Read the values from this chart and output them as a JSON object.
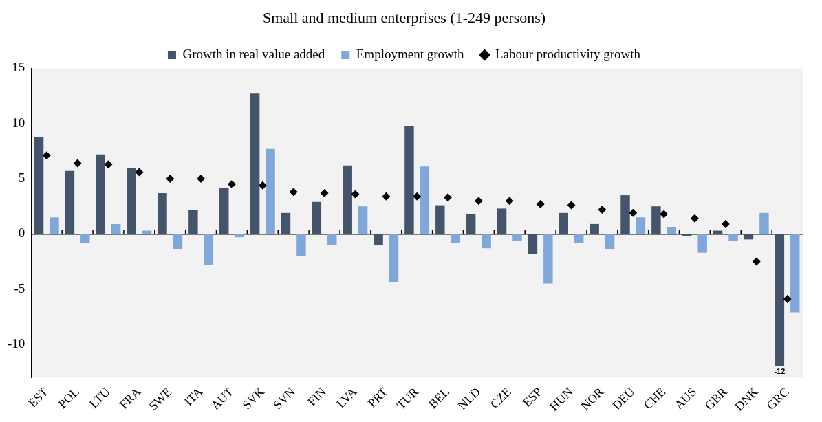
{
  "chart_data": {
    "type": "bar",
    "title": "Small and medium enterprises (1-249 persons)",
    "categories": [
      "EST",
      "POL",
      "LTU",
      "FRA",
      "SWE",
      "ITA",
      "AUT",
      "SVK",
      "SVN",
      "FIN",
      "LVA",
      "PRT",
      "TUR",
      "BEL",
      "NLD",
      "CZE",
      "ESP",
      "HUN",
      "NOR",
      "DEU",
      "CHE",
      "AUS",
      "GBR",
      "DNK",
      "GRC"
    ],
    "series": [
      {
        "name": "Growth in real value added",
        "type": "bar",
        "color": "#44546a",
        "values": [
          8.8,
          5.7,
          7.2,
          6.0,
          3.7,
          2.2,
          4.2,
          12.7,
          1.9,
          2.9,
          6.2,
          -1.0,
          9.8,
          2.6,
          1.8,
          2.3,
          -1.8,
          1.9,
          0.9,
          3.5,
          2.5,
          -0.2,
          0.3,
          -0.5,
          -12
        ],
        "value_labels": [
          null,
          null,
          null,
          null,
          null,
          null,
          null,
          null,
          null,
          null,
          null,
          null,
          null,
          null,
          null,
          null,
          null,
          null,
          null,
          null,
          null,
          null,
          null,
          null,
          "-12"
        ]
      },
      {
        "name": "Employment growth",
        "type": "bar",
        "color": "#7fa7d9",
        "values": [
          1.5,
          -0.8,
          0.9,
          0.3,
          -1.4,
          -2.8,
          -0.3,
          7.7,
          -2.0,
          -1.0,
          2.5,
          -4.4,
          6.1,
          -0.8,
          -1.3,
          -0.6,
          -4.5,
          -0.8,
          -1.4,
          1.5,
          0.6,
          -1.7,
          -0.6,
          1.9,
          -7.1
        ]
      },
      {
        "name": "Labour productivity growth",
        "type": "scatter",
        "color": "#000000",
        "values": [
          7.1,
          6.4,
          6.3,
          5.6,
          5.0,
          5.0,
          4.5,
          4.4,
          3.8,
          3.7,
          3.6,
          3.4,
          3.4,
          3.3,
          3.0,
          3.0,
          2.7,
          2.6,
          2.2,
          1.9,
          1.8,
          1.4,
          0.9,
          -2.5,
          -5.9
        ]
      }
    ],
    "marker": "diamond",
    "ylim": [
      -13,
      15
    ],
    "yticks": [
      -10,
      -5,
      0,
      5,
      10,
      15
    ],
    "legend": "top"
  }
}
